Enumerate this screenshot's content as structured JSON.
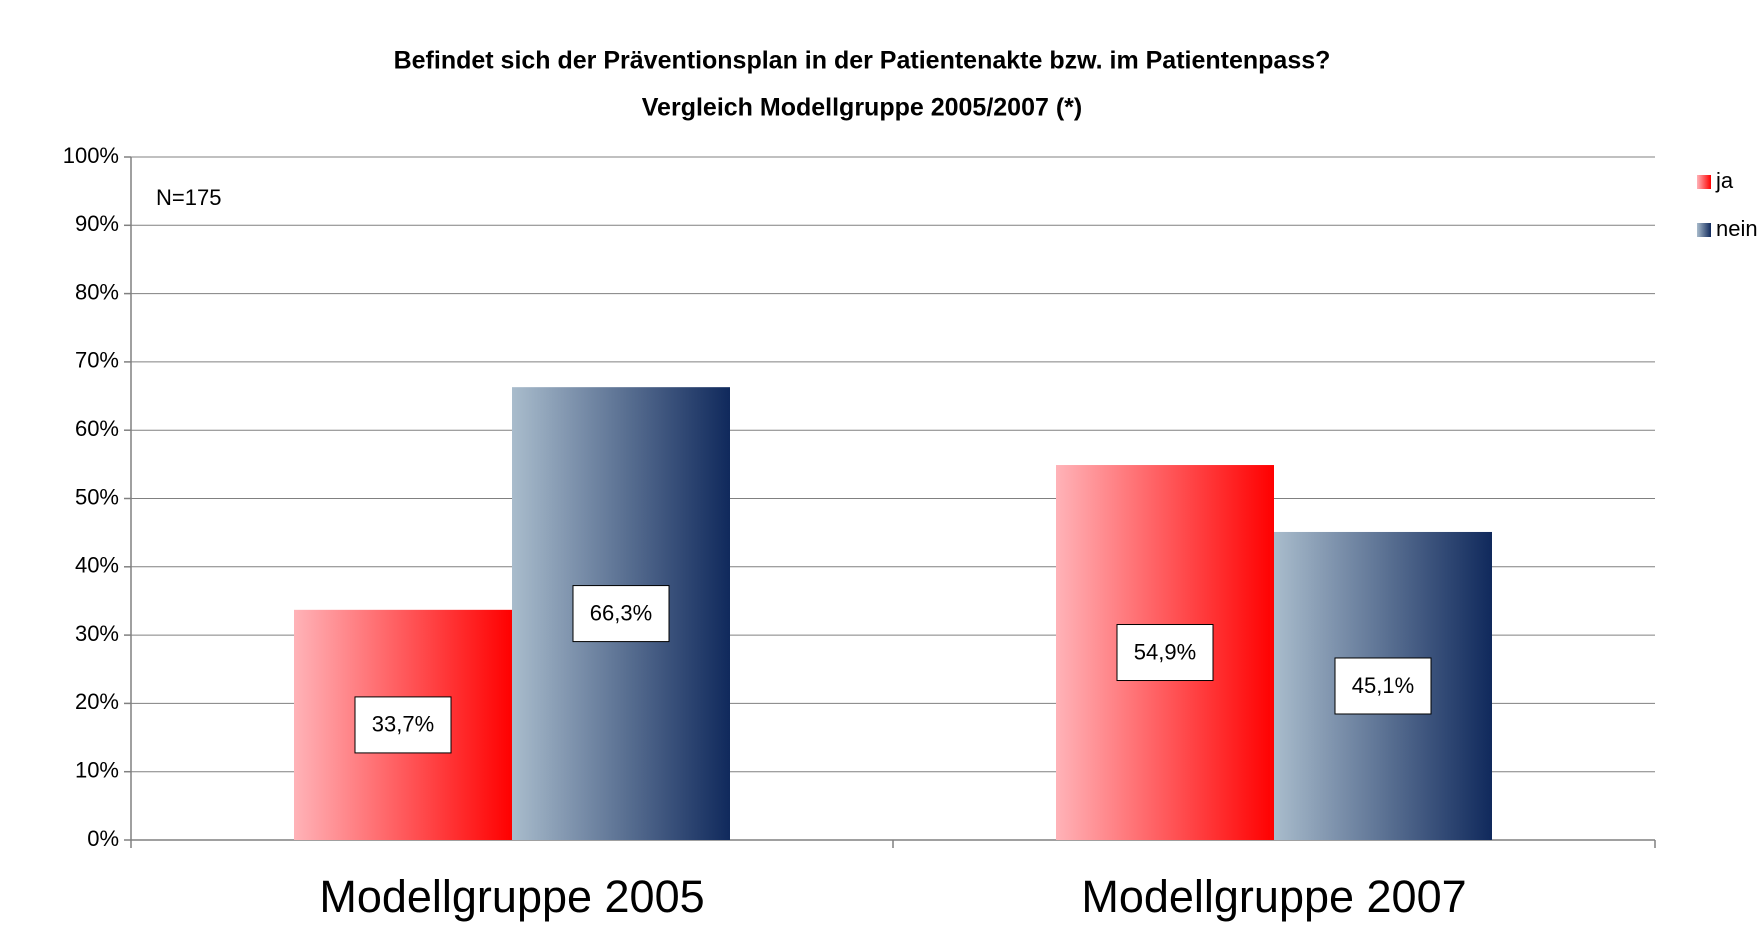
{
  "chart_data": {
    "type": "bar",
    "title": "Befindet sich der Präventionsplan in der Patientenakte bzw. im Patientenpass?",
    "subtitle": "Vergleich Modellgruppe 2005/2007 (*)",
    "annotation": "N=175",
    "categories": [
      "Modellgruppe 2005",
      "Modellgruppe 2007"
    ],
    "series": [
      {
        "name": "ja",
        "color": "#ff0000",
        "values": [
          33.7,
          54.9
        ],
        "value_labels": [
          "33,7%",
          "54,9%"
        ]
      },
      {
        "name": "nein",
        "color": "#10295c",
        "values": [
          66.3,
          45.1
        ],
        "value_labels": [
          "66,3%",
          "45,1%"
        ]
      }
    ],
    "ylim": [
      0,
      100
    ],
    "yticks": [
      {
        "value": 0,
        "label": "0%"
      },
      {
        "value": 10,
        "label": "10%"
      },
      {
        "value": 20,
        "label": "20%"
      },
      {
        "value": 30,
        "label": "30%"
      },
      {
        "value": 40,
        "label": "40%"
      },
      {
        "value": 50,
        "label": "50%"
      },
      {
        "value": 60,
        "label": "60%"
      },
      {
        "value": 70,
        "label": "70%"
      },
      {
        "value": 80,
        "label": "80%"
      },
      {
        "value": 90,
        "label": "90%"
      },
      {
        "value": 100,
        "label": "100%"
      }
    ],
    "grid": true,
    "legend": "right"
  }
}
